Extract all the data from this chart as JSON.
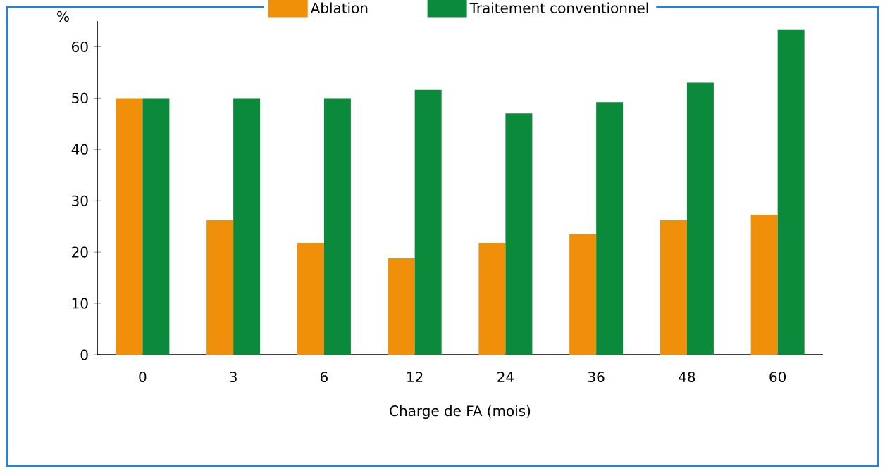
{
  "chart_data": {
    "type": "bar",
    "xlabel": "Charge de FA (mois)",
    "ylabel": "%",
    "categories": [
      "0",
      "3",
      "6",
      "12",
      "24",
      "36",
      "48",
      "60"
    ],
    "series": [
      {
        "name": "Ablation",
        "color": "#f0900a",
        "values": [
          50,
          26.2,
          21.8,
          18.8,
          21.8,
          23.5,
          26.2,
          27.3
        ]
      },
      {
        "name": "Traitement conventionnel",
        "color": "#0a8a3a",
        "values": [
          50,
          50,
          50,
          51.6,
          47,
          49.2,
          53,
          63.4
        ]
      }
    ],
    "ylim": [
      0,
      65
    ],
    "yticks": [
      0,
      10,
      20,
      30,
      40,
      50,
      60
    ],
    "legend": "top",
    "grid": false
  }
}
